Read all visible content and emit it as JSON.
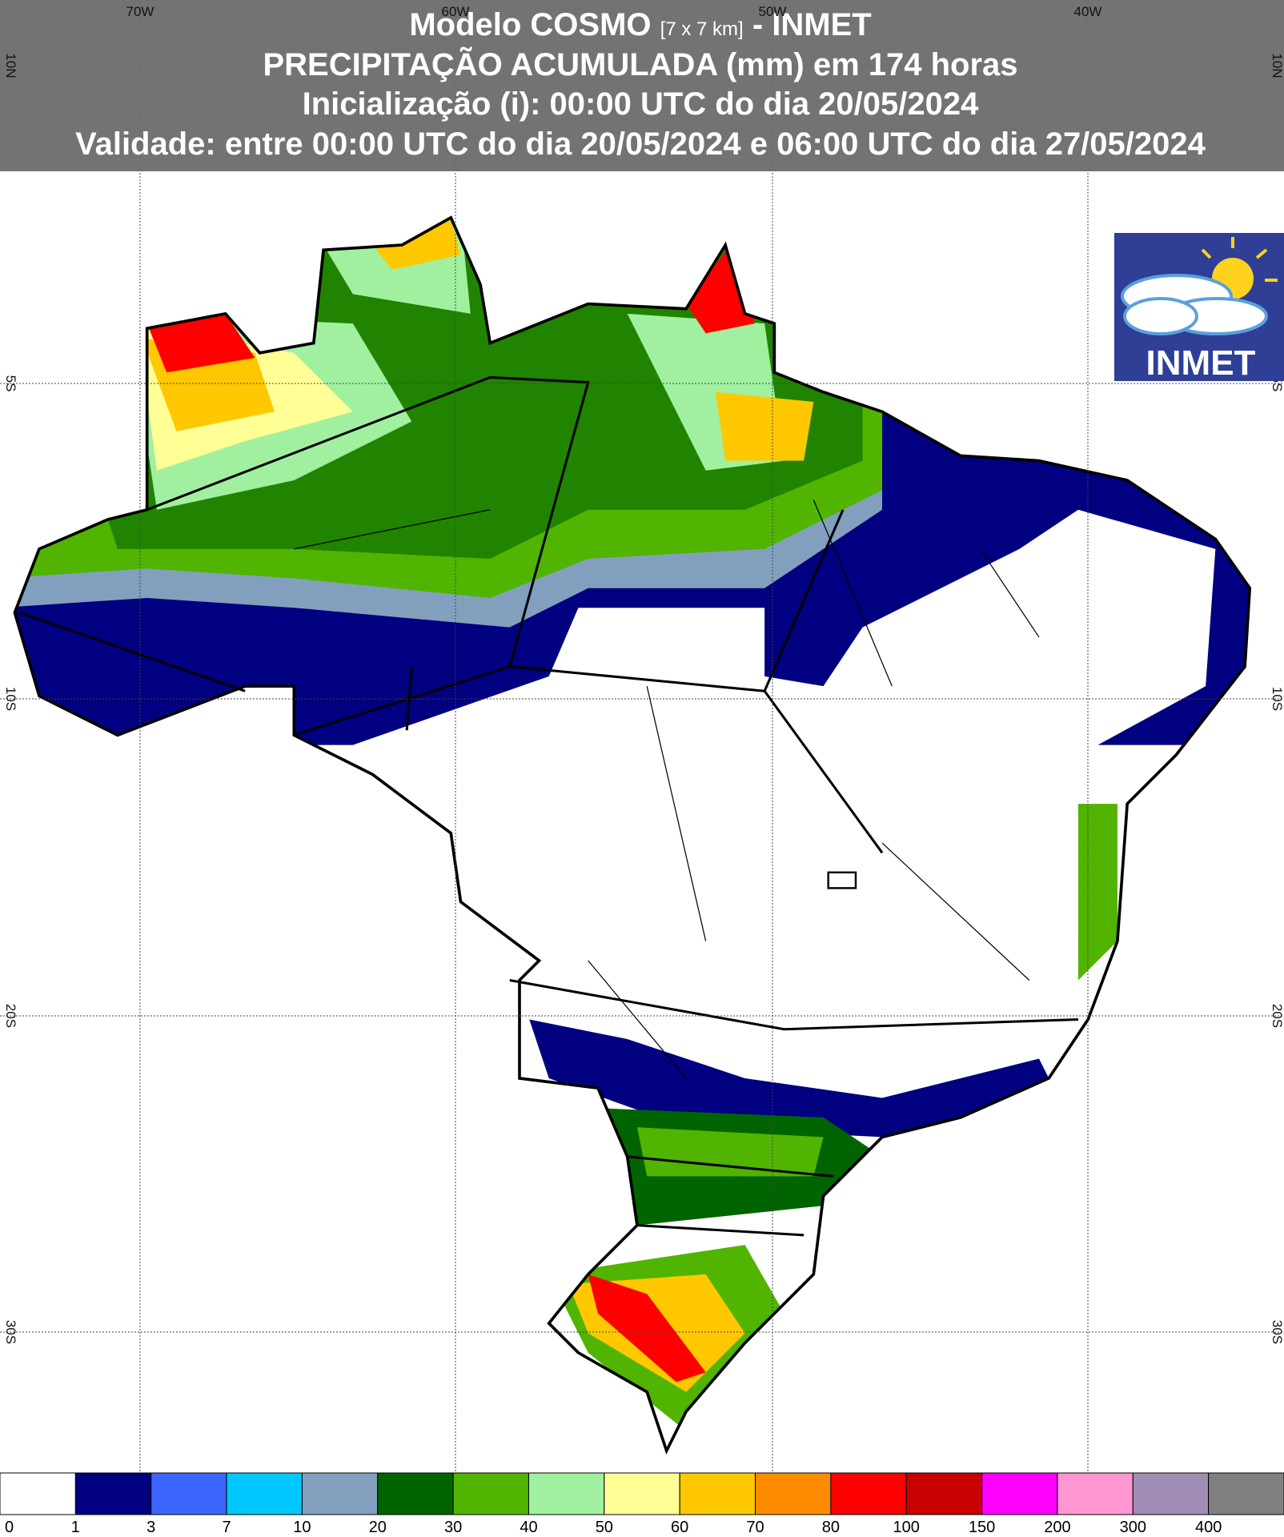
{
  "header": {
    "title_main": "Modelo COSMO",
    "title_grid": "[7 x 7 km]",
    "title_suffix": "- INMET",
    "line2": "PRECIPITAÇÃO ACUMULADA (mm) em 174 horas",
    "line3": "Inicialização (i): 00:00 UTC do dia 20/05/2024",
    "line4": "Validade: entre 00:00 UTC do dia 20/05/2024 e 06:00 UTC do dia 27/05/2024"
  },
  "grid": {
    "lon_labels": [
      "70W",
      "60W",
      "50W",
      "40W"
    ],
    "lat_labels": [
      "10N",
      "5S",
      "10S",
      "20S",
      "30S"
    ]
  },
  "logo": {
    "text": "INMET"
  },
  "legend": {
    "values": [
      0,
      1,
      3,
      7,
      10,
      20,
      30,
      40,
      50,
      60,
      70,
      80,
      100,
      150,
      200,
      300,
      400
    ],
    "colors": [
      "#ffffff",
      "#000080",
      "#3c64ff",
      "#00c8ff",
      "#82a0be",
      "#006400",
      "#50b400",
      "#a0f0a0",
      "#ffff96",
      "#ffc800",
      "#ff8c00",
      "#ff0000",
      "#c80000",
      "#ff00ff",
      "#ff96d2",
      "#a08cb4",
      "#808080"
    ]
  }
}
